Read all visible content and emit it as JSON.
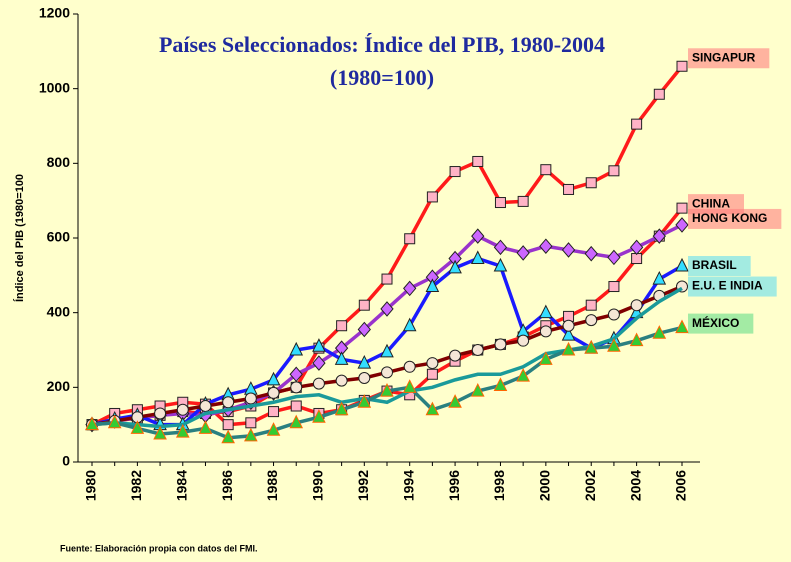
{
  "chart_data": {
    "type": "line",
    "title": "Países Seleccionados: Índice del PIB, 1980-2004",
    "subtitle": "(1980=100)",
    "y_label": "Índice del PIB (1980=100",
    "footnote": "Fuente: Elaboración propia con datos del FMI.",
    "x": [
      1980,
      1981,
      1982,
      1983,
      1984,
      1985,
      1986,
      1987,
      1988,
      1989,
      1990,
      1991,
      1992,
      1993,
      1994,
      1995,
      1996,
      1997,
      1998,
      1999,
      2000,
      2001,
      2002,
      2003,
      2004,
      2005,
      2006
    ],
    "xticks": [
      1980,
      1982,
      1984,
      1986,
      1988,
      1990,
      1992,
      1994,
      1996,
      1998,
      2000,
      2002,
      2004,
      2006
    ],
    "ylim": [
      0,
      1200
    ],
    "yticks": [
      0,
      200,
      400,
      600,
      800,
      1000,
      1200
    ],
    "series": [
      {
        "name": "SINGAPUR",
        "color": "#ff1a1a",
        "marker": "square",
        "values": [
          100,
          110,
          118,
          125,
          135,
          130,
          135,
          150,
          185,
          200,
          305,
          365,
          420,
          490,
          598,
          710,
          778,
          805,
          695,
          698,
          783,
          730,
          748,
          780,
          905,
          985,
          1060
        ]
      },
      {
        "name": "CHINA",
        "color": "#ff1a1a",
        "marker": "square",
        "values": [
          100,
          130,
          140,
          150,
          160,
          155,
          100,
          105,
          135,
          150,
          130,
          140,
          165,
          190,
          180,
          235,
          270,
          300,
          315,
          335,
          365,
          390,
          420,
          470,
          545,
          605,
          680
        ]
      },
      {
        "name": "HONG KONG",
        "color": "#9933cc",
        "marker": "diamond",
        "values": [
          100,
          110,
          118,
          125,
          130,
          125,
          140,
          160,
          185,
          235,
          265,
          305,
          355,
          410,
          465,
          495,
          545,
          605,
          575,
          560,
          578,
          568,
          558,
          548,
          575,
          605,
          635
        ]
      },
      {
        "name": "BRASIL",
        "color": "#1a1aff",
        "marker": "triangle",
        "values": [
          100,
          115,
          125,
          100,
          100,
          155,
          180,
          195,
          220,
          300,
          310,
          275,
          265,
          295,
          365,
          470,
          520,
          545,
          525,
          350,
          400,
          340,
          305,
          330,
          400,
          490,
          525
        ]
      },
      {
        "name": "E.U. E INDIA",
        "color": "#800000",
        "marker": "circle",
        "values": [
          100,
          110,
          120,
          130,
          140,
          150,
          160,
          170,
          185,
          200,
          210,
          218,
          225,
          240,
          255,
          265,
          285,
          300,
          315,
          325,
          350,
          365,
          380,
          395,
          420,
          445,
          470
        ]
      },
      {
        "color": "#1a9a9a",
        "marker": "none",
        "values": [
          100,
          105,
          100,
          95,
          100,
          130,
          140,
          150,
          160,
          175,
          180,
          160,
          170,
          160,
          190,
          200,
          220,
          235,
          235,
          255,
          290,
          300,
          310,
          330,
          385,
          430,
          465
        ]
      },
      {
        "name": "MÉXICO",
        "color": "#2a8080",
        "marker": "triangle2",
        "values": [
          100,
          105,
          90,
          75,
          80,
          90,
          65,
          70,
          85,
          105,
          120,
          140,
          160,
          190,
          200,
          140,
          160,
          190,
          205,
          230,
          275,
          300,
          305,
          310,
          325,
          345,
          360
        ]
      }
    ]
  }
}
